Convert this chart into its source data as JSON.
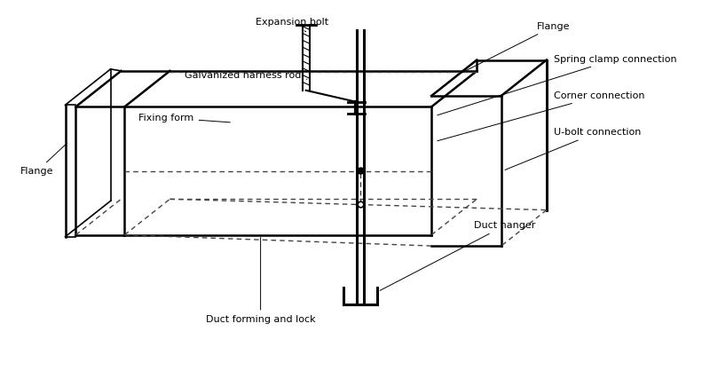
{
  "bg_color": "#ffffff",
  "line_color": "#000000",
  "dashed_color": "#555555",
  "title": "",
  "fig_width": 8.0,
  "fig_height": 4.18,
  "labels": {
    "expansion_bolt": "Expansion bolt",
    "galvanized_rod": "Galvanized harness rod",
    "fixing_form": "Fixing form",
    "flange_left": "Flange",
    "flange_right": "Flange",
    "spring_clamp": "Spring clamp connection",
    "corner_connection": "Corner connection",
    "u_bolt": "U-bolt connection",
    "duct_hanger": "Duct hanger",
    "duct_forming": "Duct forming and lock"
  }
}
